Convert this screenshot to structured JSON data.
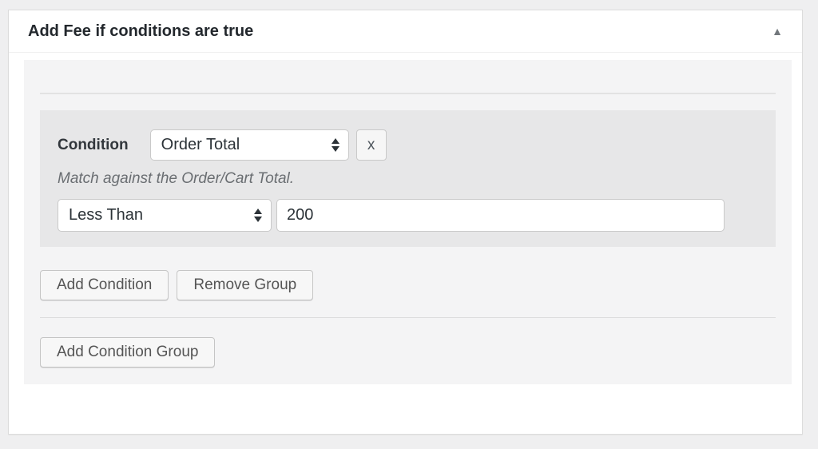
{
  "metabox": {
    "title": "Add Fee if conditions are true",
    "collapse_icon": "▲"
  },
  "condition_group": {
    "condition_label": "Condition",
    "condition_type": {
      "value": "Order Total"
    },
    "remove_condition_label": "x",
    "description": "Match against the Order/Cart Total.",
    "operator": {
      "value": "Less Than"
    },
    "value_input": {
      "value": "200"
    }
  },
  "buttons": {
    "add_condition": "Add Condition",
    "remove_group": "Remove Group",
    "add_condition_group": "Add Condition Group"
  },
  "colors": {
    "page_background": "#efeff0",
    "box_background": "#ffffff",
    "panel_background": "#f4f4f5",
    "group_background": "#e7e7e8",
    "control_border": "#c9c9c9",
    "title_text": "#23282d",
    "muted_text": "#6a6e72"
  }
}
